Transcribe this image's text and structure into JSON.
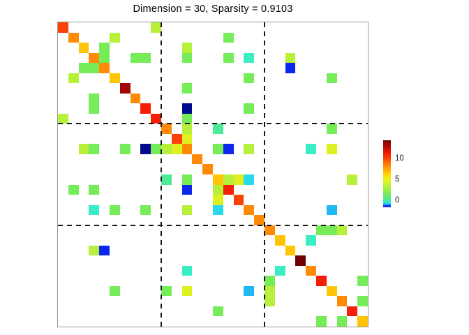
{
  "figure": {
    "background": "#FFFFFF"
  },
  "chart_data": {
    "type": "heatmap",
    "title": "Dimension = 30, Sparsity = 0.9103",
    "dimension": 30,
    "sparsity": 0.9103,
    "grid": {
      "rows": 30,
      "cols": 30,
      "cell_background": "#FFFFFF"
    },
    "axes_box_color": "#979797",
    "block_dividers": {
      "after_cols": [
        10,
        20
      ],
      "after_rows": [
        10,
        20
      ],
      "line_style": "dashed",
      "line_color": "#161616"
    },
    "colormap": "jet",
    "palette": {
      "maroon": "#700101",
      "darkred": "#A30504",
      "red": "#F71D06",
      "orangered": "#FB4106",
      "orange": "#FF8A05",
      "gold": "#FFC403",
      "yellow": "#DFF021",
      "greenyellow": "#B6F03B",
      "green": "#76EC58",
      "springgreen": "#4CEB97",
      "turquoise": "#3AEDC4",
      "cyan": "#2BD9ED",
      "skyblue": "#1FB9F2",
      "blue": "#0B26EE",
      "navy": "#010A8C"
    },
    "palette_value_estimates": {
      "maroon": 14,
      "darkred": 12.5,
      "red": 11,
      "orangered": 10,
      "orange": 9,
      "gold": 7.5,
      "yellow": 5,
      "greenyellow": 3.5,
      "green": 2.5,
      "springgreen": 1.5,
      "turquoise": 1,
      "cyan": 0.4,
      "skyblue": 0,
      "blue": -1,
      "navy": -1.6
    },
    "cells": [
      [
        1,
        1,
        "orangered"
      ],
      [
        2,
        2,
        "orange"
      ],
      [
        3,
        3,
        "gold"
      ],
      [
        4,
        4,
        "orange"
      ],
      [
        5,
        5,
        "orange"
      ],
      [
        6,
        6,
        "gold"
      ],
      [
        7,
        7,
        "darkred"
      ],
      [
        8,
        8,
        "orange"
      ],
      [
        9,
        9,
        "red"
      ],
      [
        10,
        10,
        "red"
      ],
      [
        11,
        11,
        "orange"
      ],
      [
        12,
        12,
        "orangered"
      ],
      [
        13,
        13,
        "orange"
      ],
      [
        14,
        14,
        "orange"
      ],
      [
        15,
        15,
        "orange"
      ],
      [
        16,
        16,
        "gold"
      ],
      [
        17,
        17,
        "red"
      ],
      [
        18,
        18,
        "orangered"
      ],
      [
        19,
        19,
        "orange"
      ],
      [
        20,
        20,
        "orange"
      ],
      [
        21,
        21,
        "orange"
      ],
      [
        22,
        22,
        "gold"
      ],
      [
        23,
        23,
        "gold"
      ],
      [
        24,
        24,
        "maroon"
      ],
      [
        25,
        25,
        "orange"
      ],
      [
        26,
        26,
        "red"
      ],
      [
        27,
        27,
        "gold"
      ],
      [
        28,
        28,
        "orange"
      ],
      [
        29,
        29,
        "red"
      ],
      [
        30,
        30,
        "gold"
      ],
      [
        1,
        10,
        "greenyellow"
      ],
      [
        10,
        1,
        "greenyellow"
      ],
      [
        2,
        6,
        "greenyellow"
      ],
      [
        6,
        2,
        "greenyellow"
      ],
      [
        2,
        17,
        "green"
      ],
      [
        17,
        2,
        "green"
      ],
      [
        3,
        5,
        "green"
      ],
      [
        5,
        3,
        "green"
      ],
      [
        3,
        13,
        "greenyellow"
      ],
      [
        13,
        3,
        "greenyellow"
      ],
      [
        4,
        5,
        "green"
      ],
      [
        5,
        4,
        "green"
      ],
      [
        4,
        8,
        "green"
      ],
      [
        8,
        4,
        "green"
      ],
      [
        4,
        9,
        "green"
      ],
      [
        9,
        4,
        "green"
      ],
      [
        4,
        13,
        "green"
      ],
      [
        13,
        4,
        "green"
      ],
      [
        4,
        17,
        "green"
      ],
      [
        17,
        4,
        "green"
      ],
      [
        4,
        19,
        "turquoise"
      ],
      [
        19,
        4,
        "turquoise"
      ],
      [
        4,
        23,
        "greenyellow"
      ],
      [
        23,
        4,
        "greenyellow"
      ],
      [
        5,
        23,
        "blue"
      ],
      [
        23,
        5,
        "blue"
      ],
      [
        6,
        19,
        "green"
      ],
      [
        19,
        6,
        "green"
      ],
      [
        6,
        27,
        "green"
      ],
      [
        27,
        6,
        "green"
      ],
      [
        7,
        13,
        "green"
      ],
      [
        13,
        7,
        "green"
      ],
      [
        9,
        13,
        "navy"
      ],
      [
        13,
        9,
        "navy"
      ],
      [
        9,
        19,
        "green"
      ],
      [
        19,
        9,
        "green"
      ],
      [
        10,
        13,
        "green"
      ],
      [
        13,
        10,
        "green"
      ],
      [
        11,
        13,
        "greenyellow"
      ],
      [
        13,
        11,
        "greenyellow"
      ],
      [
        11,
        16,
        "springgreen"
      ],
      [
        16,
        11,
        "springgreen"
      ],
      [
        11,
        27,
        "green"
      ],
      [
        27,
        11,
        "green"
      ],
      [
        12,
        13,
        "yellow"
      ],
      [
        13,
        12,
        "yellow"
      ],
      [
        13,
        16,
        "green"
      ],
      [
        16,
        13,
        "green"
      ],
      [
        13,
        17,
        "blue"
      ],
      [
        17,
        13,
        "blue"
      ],
      [
        13,
        19,
        "greenyellow"
      ],
      [
        19,
        13,
        "greenyellow"
      ],
      [
        13,
        25,
        "turquoise"
      ],
      [
        25,
        13,
        "turquoise"
      ],
      [
        13,
        27,
        "yellow"
      ],
      [
        27,
        13,
        "yellow"
      ],
      [
        16,
        17,
        "greenyellow"
      ],
      [
        17,
        16,
        "greenyellow"
      ],
      [
        16,
        18,
        "yellow"
      ],
      [
        18,
        16,
        "yellow"
      ],
      [
        16,
        19,
        "cyan"
      ],
      [
        19,
        16,
        "cyan"
      ],
      [
        16,
        29,
        "greenyellow"
      ],
      [
        29,
        16,
        "green"
      ],
      [
        19,
        27,
        "skyblue"
      ],
      [
        27,
        19,
        "skyblue"
      ],
      [
        21,
        26,
        "green"
      ],
      [
        26,
        21,
        "green"
      ],
      [
        21,
        27,
        "green"
      ],
      [
        27,
        21,
        "greenyellow"
      ],
      [
        21,
        28,
        "greenyellow"
      ],
      [
        28,
        21,
        "greenyellow"
      ],
      [
        22,
        25,
        "turquoise"
      ],
      [
        25,
        22,
        "turquoise"
      ],
      [
        26,
        30,
        "green"
      ],
      [
        30,
        26,
        "green"
      ],
      [
        28,
        30,
        "green"
      ],
      [
        30,
        28,
        "green"
      ]
    ],
    "colorbar": {
      "orientation": "vertical",
      "ticks": [
        {
          "label": "10",
          "pos": 0.27
        },
        {
          "label": "5",
          "pos": 0.585
        },
        {
          "label": "0",
          "pos": 0.895
        }
      ],
      "value_range_estimate": [
        -1.7,
        14.3
      ],
      "gradient": [
        "#700101 0%",
        "#A30504 7%",
        "#E81505 17%",
        "#FB4106 27%",
        "#FF8A05 38%",
        "#FFC403 48%",
        "#EFF312 58%",
        "#C3F03C 67%",
        "#8BEE52 77%",
        "#5BE977 86%",
        "#3EE9B5 91%",
        "#2BD9ED 94%",
        "#1F9BF5 96%",
        "#0B26EE 98%",
        "#0B26EE 100%"
      ]
    }
  }
}
